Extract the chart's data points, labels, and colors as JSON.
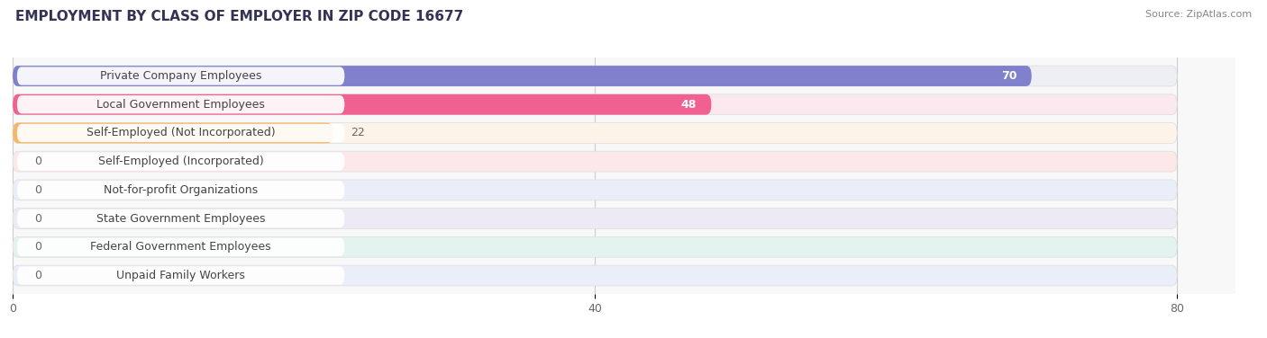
{
  "title": "EMPLOYMENT BY CLASS OF EMPLOYER IN ZIP CODE 16677",
  "source": "Source: ZipAtlas.com",
  "categories": [
    "Private Company Employees",
    "Local Government Employees",
    "Self-Employed (Not Incorporated)",
    "Self-Employed (Incorporated)",
    "Not-for-profit Organizations",
    "State Government Employees",
    "Federal Government Employees",
    "Unpaid Family Workers"
  ],
  "values": [
    70,
    48,
    22,
    0,
    0,
    0,
    0,
    0
  ],
  "bar_colors": [
    "#8080cc",
    "#f06090",
    "#f5b86a",
    "#f09898",
    "#a0b8e8",
    "#b8a0d0",
    "#60c0b0",
    "#a8b8e8"
  ],
  "bar_bg_colors": [
    "#eeeef5",
    "#fce8ef",
    "#fdf3e8",
    "#fce8e8",
    "#eaeef8",
    "#eeeaf5",
    "#e2f3f0",
    "#eaeef8"
  ],
  "xlim_max": 84,
  "data_max": 80,
  "xticks": [
    0,
    40,
    80
  ],
  "title_fontsize": 11,
  "label_fontsize": 9,
  "value_fontsize": 9,
  "bg_color": "#ffffff",
  "plot_bg_color": "#f8f8f8"
}
